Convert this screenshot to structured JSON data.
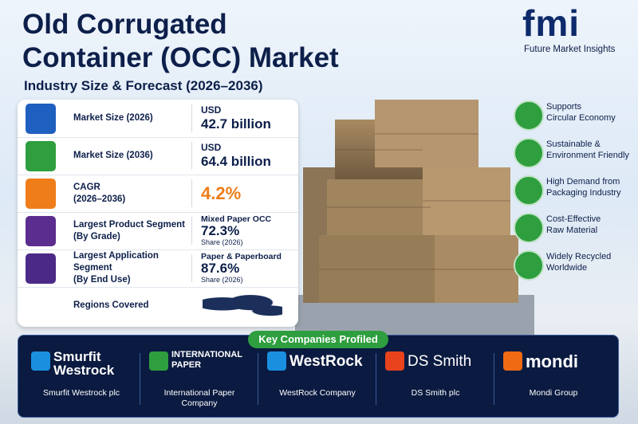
{
  "header": {
    "title_lines": [
      "Old Corrugated",
      "Container (OCC) Market"
    ],
    "subtitle": "Industry Size & Forecast (2026–2036)"
  },
  "logo": {
    "mark": "fmi",
    "name": "Future Market Insights"
  },
  "metrics": [
    {
      "label_lines": [
        "Market Size (2026)"
      ],
      "value_lines": [
        "USD",
        "42.7 billion"
      ]
    },
    {
      "label_lines": [
        "Market Size (2036)"
      ],
      "value_lines": [
        "USD",
        "64.4 billion"
      ]
    },
    {
      "label_lines": [
        "CAGR",
        "(2026–2036)"
      ],
      "value_lines": [
        "4.2%"
      ]
    },
    {
      "label_lines": [
        "Largest Product Segment",
        "(By Grade)"
      ],
      "value_lines": [
        "Mixed Paper OCC",
        "72.3%",
        "Share (2026)"
      ]
    },
    {
      "label_lines": [
        "Largest Application Segment",
        "(By End Use)"
      ],
      "value_lines": [
        "Paper & Paperboard",
        "87.6%",
        "Share (2026)"
      ]
    },
    {
      "label_lines": [
        "Regions Covered"
      ],
      "value_lines": []
    }
  ],
  "benefits": [
    [
      "Supports",
      "Circular Economy"
    ],
    [
      "Sustainable &",
      "Environment Friendly"
    ],
    [
      "High Demand from",
      "Packaging Industry"
    ],
    [
      "Cost-Effective",
      "Raw Material"
    ],
    [
      "Widely Recycled",
      "Worldwide"
    ]
  ],
  "companies": {
    "heading": "Key Companies Profiled",
    "items": [
      {
        "logo_lines": [
          "Smurfit",
          "Westrock"
        ],
        "caption_lines": [
          "Smurfit Westrock plc"
        ]
      },
      {
        "logo_lines": [
          "INTERNATIONAL",
          "PAPER"
        ],
        "caption_lines": [
          "International Paper",
          "Company"
        ]
      },
      {
        "logo_lines": [
          "WestRock"
        ],
        "caption_lines": [
          "WestRock Company"
        ]
      },
      {
        "logo_lines": [
          "DS Smith"
        ],
        "caption_lines": [
          "DS Smith plc"
        ]
      },
      {
        "logo_lines": [
          "mondi"
        ],
        "caption_lines": [
          "Mondi Group"
        ]
      }
    ]
  }
}
